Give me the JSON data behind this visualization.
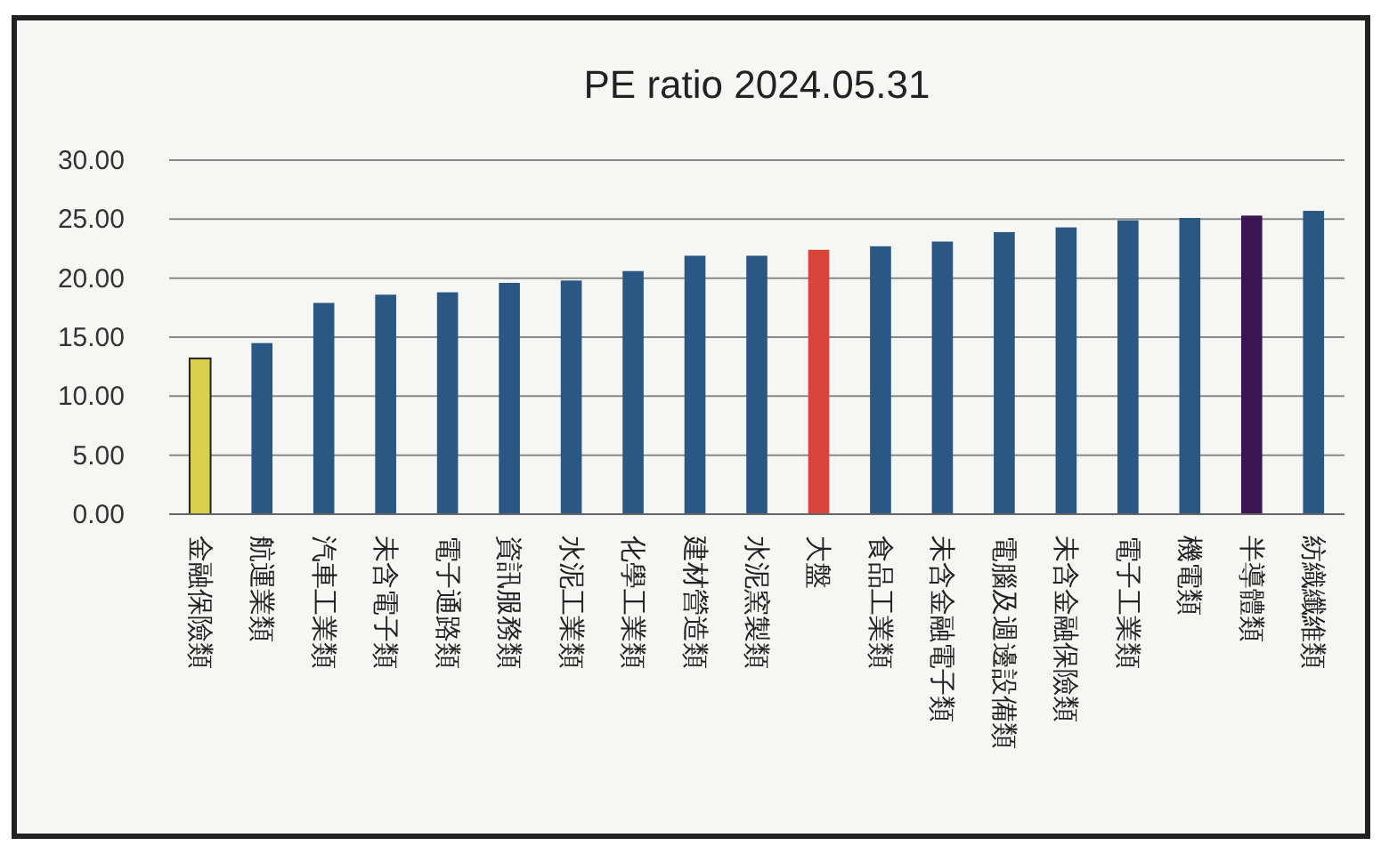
{
  "chart_data": {
    "type": "bar",
    "title": "PE ratio 2024.05.31",
    "categories": [
      "金融保險類",
      "航運業類",
      "汽車工業類",
      "未含電子類",
      "電子通路類",
      "資訊服務類",
      "水泥工業類",
      "化學工業類",
      "建材營造類",
      "水泥窯製類",
      "大盤",
      "食品工業類",
      "未含金融電子類",
      "電腦及週邊設備類",
      "未含金融保險類",
      "電子工業類",
      "機電類",
      "半導體類",
      "紡織纖維類"
    ],
    "values": [
      13.2,
      14.5,
      17.9,
      18.6,
      18.8,
      19.6,
      19.8,
      20.6,
      21.9,
      21.9,
      22.4,
      22.7,
      23.1,
      23.9,
      24.3,
      24.9,
      25.1,
      25.3,
      25.7
    ],
    "colors": [
      "#d9cf4e",
      "#2a5783",
      "#2a5783",
      "#2a5783",
      "#2a5783",
      "#2a5783",
      "#2a5783",
      "#2a5783",
      "#2a5783",
      "#2a5783",
      "#d9453a",
      "#2a5783",
      "#2a5783",
      "#2a5783",
      "#2a5783",
      "#2a5783",
      "#2a5783",
      "#3b1552",
      "#2a5783"
    ],
    "ylim": [
      0,
      30
    ],
    "yticks": [
      {
        "value": 0,
        "label": "0.00"
      },
      {
        "value": 5,
        "label": "5.00"
      },
      {
        "value": 10,
        "label": "10.00"
      },
      {
        "value": 15,
        "label": "15.00"
      },
      {
        "value": 20,
        "label": "20.00"
      },
      {
        "value": 25,
        "label": "25.00"
      },
      {
        "value": 30,
        "label": "30.00"
      }
    ],
    "grid": "y"
  }
}
